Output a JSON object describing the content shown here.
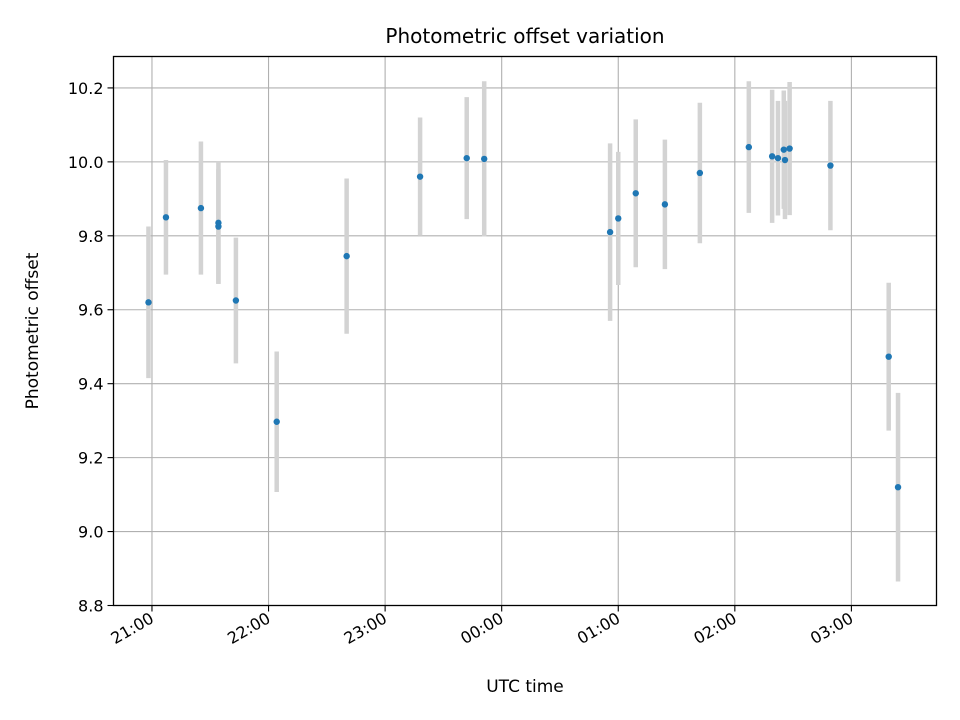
{
  "chart_data": {
    "type": "scatter",
    "title": "Photometric offset variation",
    "xlabel": "UTC time",
    "ylabel": "Photometric offset",
    "x_unit": "UTC hours (values past 24 are the following day)",
    "xlim": [
      20.67,
      27.73
    ],
    "ylim": [
      8.8,
      10.285
    ],
    "grid": true,
    "legend": "none",
    "x_ticks": [
      {
        "value": 21,
        "label": "21:00"
      },
      {
        "value": 22,
        "label": "22:00"
      },
      {
        "value": 23,
        "label": "23:00"
      },
      {
        "value": 24,
        "label": "00:00"
      },
      {
        "value": 25,
        "label": "01:00"
      },
      {
        "value": 26,
        "label": "02:00"
      },
      {
        "value": 27,
        "label": "03:00"
      }
    ],
    "y_ticks": [
      {
        "value": 8.8,
        "label": "8.8"
      },
      {
        "value": 9.0,
        "label": "9.0"
      },
      {
        "value": 9.2,
        "label": "9.2"
      },
      {
        "value": 9.4,
        "label": "9.4"
      },
      {
        "value": 9.6,
        "label": "9.6"
      },
      {
        "value": 9.8,
        "label": "9.8"
      },
      {
        "value": 10.0,
        "label": "10.0"
      },
      {
        "value": 10.2,
        "label": "10.2"
      }
    ],
    "point_color": "#1f77b4",
    "errorbar_color": "#d3d3d3",
    "points": [
      {
        "x": 20.97,
        "y": 9.62,
        "err": 0.205
      },
      {
        "x": 21.12,
        "y": 9.85,
        "err": 0.155
      },
      {
        "x": 21.42,
        "y": 9.875,
        "err": 0.18
      },
      {
        "x": 21.57,
        "y": 9.835,
        "err": 0.165
      },
      {
        "x": 21.57,
        "y": 9.825,
        "err": 0.155
      },
      {
        "x": 21.72,
        "y": 9.625,
        "err": 0.17
      },
      {
        "x": 22.07,
        "y": 9.297,
        "err": 0.19
      },
      {
        "x": 22.67,
        "y": 9.745,
        "err": 0.21
      },
      {
        "x": 23.3,
        "y": 9.96,
        "err": 0.16
      },
      {
        "x": 23.7,
        "y": 10.01,
        "err": 0.165
      },
      {
        "x": 23.85,
        "y": 10.008,
        "err": 0.21
      },
      {
        "x": 24.93,
        "y": 9.81,
        "err": 0.24
      },
      {
        "x": 25.0,
        "y": 9.847,
        "err": 0.18
      },
      {
        "x": 25.15,
        "y": 9.915,
        "err": 0.2
      },
      {
        "x": 25.4,
        "y": 9.885,
        "err": 0.175
      },
      {
        "x": 25.7,
        "y": 9.97,
        "err": 0.19
      },
      {
        "x": 26.12,
        "y": 10.04,
        "err": 0.178
      },
      {
        "x": 26.32,
        "y": 10.015,
        "err": 0.18
      },
      {
        "x": 26.37,
        "y": 10.01,
        "err": 0.155
      },
      {
        "x": 26.42,
        "y": 10.033,
        "err": 0.16
      },
      {
        "x": 26.43,
        "y": 10.005,
        "err": 0.16
      },
      {
        "x": 26.47,
        "y": 10.036,
        "err": 0.18
      },
      {
        "x": 26.82,
        "y": 9.99,
        "err": 0.175
      },
      {
        "x": 27.32,
        "y": 9.473,
        "err": 0.2
      },
      {
        "x": 27.4,
        "y": 9.12,
        "err": 0.255
      }
    ]
  }
}
